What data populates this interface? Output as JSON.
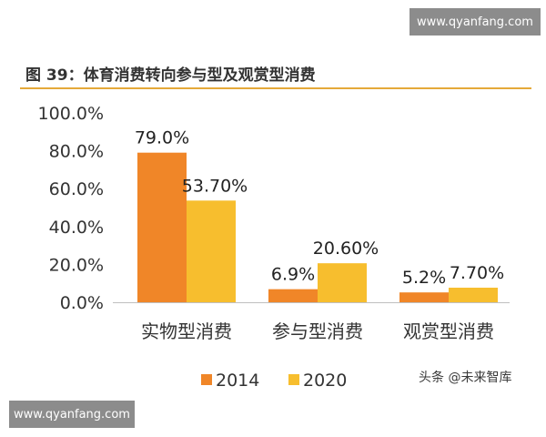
{
  "watermark": "www.qyanfang.com",
  "credit": "头条 @未来智库",
  "colors": {
    "s2014": "#f08628",
    "s2020": "#f7be2e",
    "title_rule": "#e5a93a"
  },
  "chart_data": {
    "type": "bar",
    "title": "图 39：体育消费转向参与型及观赏型消费",
    "categories": [
      "实物型消费",
      "参与型消费",
      "观赏型消费"
    ],
    "series": [
      {
        "name": "2014",
        "values": [
          79.0,
          6.9,
          5.2
        ],
        "labels": [
          "79.0%",
          "6.9%",
          "5.2%"
        ]
      },
      {
        "name": "2020",
        "values": [
          53.7,
          20.6,
          7.7
        ],
        "labels": [
          "53.70%",
          "20.60%",
          "7.70%"
        ]
      }
    ],
    "yticks": [
      "100.0%",
      "80.0%",
      "60.0%",
      "40.0%",
      "20.0%",
      "0.0%"
    ],
    "ylim": [
      0,
      100
    ],
    "xlabel": "",
    "ylabel": "",
    "grid": false,
    "legend": "bottom-center"
  }
}
